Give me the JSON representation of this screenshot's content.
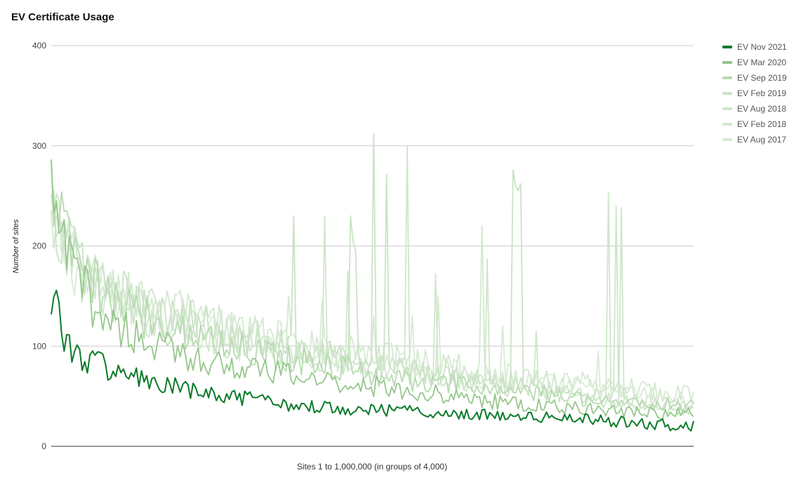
{
  "chart_data": {
    "type": "line",
    "title": "EV Certificate Usage",
    "xlabel": "Sites 1 to 1,000,000 (in groups of 4,000)",
    "ylabel": "Number of sites",
    "ylim": [
      0,
      400
    ],
    "yticks": [
      "0",
      "100",
      "200",
      "300",
      "400"
    ],
    "x_groups": 250,
    "grid": true,
    "legend_position": "right",
    "series": [
      {
        "name": "EV Aug 2017",
        "color": "#d8ead5",
        "points": [
          [
            0,
            215
          ],
          [
            5,
            195
          ],
          [
            15,
            160
          ],
          [
            30,
            140
          ],
          [
            60,
            120
          ],
          [
            100,
            95
          ],
          [
            140,
            80
          ],
          [
            180,
            65
          ],
          [
            220,
            55
          ],
          [
            250,
            45
          ]
        ],
        "spikes": [
          [
            105,
            145
          ],
          [
            125,
            130
          ],
          [
            140,
            130
          ],
          [
            175,
            120
          ],
          [
            212,
            95
          ]
        ]
      },
      {
        "name": "EV Feb 2018",
        "color": "#d4e9d0",
        "points": [
          [
            0,
            220
          ],
          [
            5,
            200
          ],
          [
            15,
            170
          ],
          [
            30,
            150
          ],
          [
            60,
            125
          ],
          [
            100,
            100
          ],
          [
            140,
            85
          ],
          [
            180,
            70
          ],
          [
            220,
            60
          ],
          [
            250,
            50
          ]
        ],
        "spikes": [
          [
            18,
            180
          ],
          [
            35,
            165
          ],
          [
            92,
            150
          ],
          [
            150,
            150
          ],
          [
            167,
            220
          ]
        ]
      },
      {
        "name": "EV Aug 2018",
        "color": "#cfe6cb",
        "points": [
          [
            0,
            230
          ],
          [
            5,
            200
          ],
          [
            15,
            165
          ],
          [
            30,
            140
          ],
          [
            60,
            110
          ],
          [
            100,
            90
          ],
          [
            140,
            75
          ],
          [
            180,
            60
          ],
          [
            220,
            48
          ],
          [
            250,
            40
          ]
        ],
        "spikes": [
          [
            106,
            230
          ],
          [
            115,
            175
          ],
          [
            138,
            300
          ],
          [
            149,
            172
          ],
          [
            169,
            187
          ],
          [
            188,
            115
          ],
          [
            216,
            253
          ],
          [
            219,
            240
          ],
          [
            221,
            238
          ]
        ]
      },
      {
        "name": "EV Feb 2019",
        "color": "#cae3c5",
        "points": [
          [
            0,
            232
          ],
          [
            5,
            210
          ],
          [
            15,
            175
          ],
          [
            30,
            145
          ],
          [
            60,
            120
          ],
          [
            100,
            95
          ],
          [
            140,
            75
          ],
          [
            180,
            60
          ],
          [
            220,
            45
          ],
          [
            250,
            35
          ]
        ],
        "spikes": [
          [
            94,
            230
          ],
          [
            116,
            230
          ],
          [
            117,
            205
          ],
          [
            118,
            195
          ],
          [
            125,
            312
          ],
          [
            130,
            272
          ],
          [
            179,
            276
          ],
          [
            180,
            260
          ],
          [
            181,
            255
          ],
          [
            182,
            262
          ]
        ]
      },
      {
        "name": "EV Sep 2019",
        "color": "#b8dab1",
        "points": [
          [
            0,
            250
          ],
          [
            2,
            260
          ],
          [
            5,
            210
          ],
          [
            12,
            175
          ],
          [
            20,
            150
          ],
          [
            40,
            125
          ],
          [
            70,
            100
          ],
          [
            100,
            85
          ],
          [
            140,
            65
          ],
          [
            180,
            55
          ],
          [
            220,
            45
          ],
          [
            250,
            40
          ]
        ],
        "spikes": [
          [
            253,
            82
          ]
        ]
      },
      {
        "name": "EV Mar 2020",
        "color": "#96c78c",
        "points": [
          [
            0,
            245
          ],
          [
            2,
            240
          ],
          [
            5,
            195
          ],
          [
            12,
            160
          ],
          [
            20,
            130
          ],
          [
            40,
            100
          ],
          [
            70,
            80
          ],
          [
            100,
            68
          ],
          [
            140,
            55
          ],
          [
            180,
            42
          ],
          [
            220,
            35
          ],
          [
            250,
            32
          ]
        ],
        "spikes": []
      },
      {
        "name": "EV Nov 2021",
        "color": "#0a7b2a",
        "points": [
          [
            0,
            158
          ],
          [
            1,
            140
          ],
          [
            3,
            145
          ],
          [
            4,
            120
          ],
          [
            6,
            105
          ],
          [
            8,
            90
          ],
          [
            12,
            90
          ],
          [
            20,
            80
          ],
          [
            40,
            62
          ],
          [
            60,
            52
          ],
          [
            80,
            45
          ],
          [
            100,
            40
          ],
          [
            140,
            35
          ],
          [
            180,
            30
          ],
          [
            220,
            25
          ],
          [
            250,
            20
          ]
        ],
        "spikes": []
      }
    ]
  },
  "legend_order": [
    "EV Nov 2021",
    "EV Mar 2020",
    "EV Sep 2019",
    "EV Feb 2019",
    "EV Aug 2018",
    "EV Feb 2018",
    "EV Aug 2017"
  ]
}
